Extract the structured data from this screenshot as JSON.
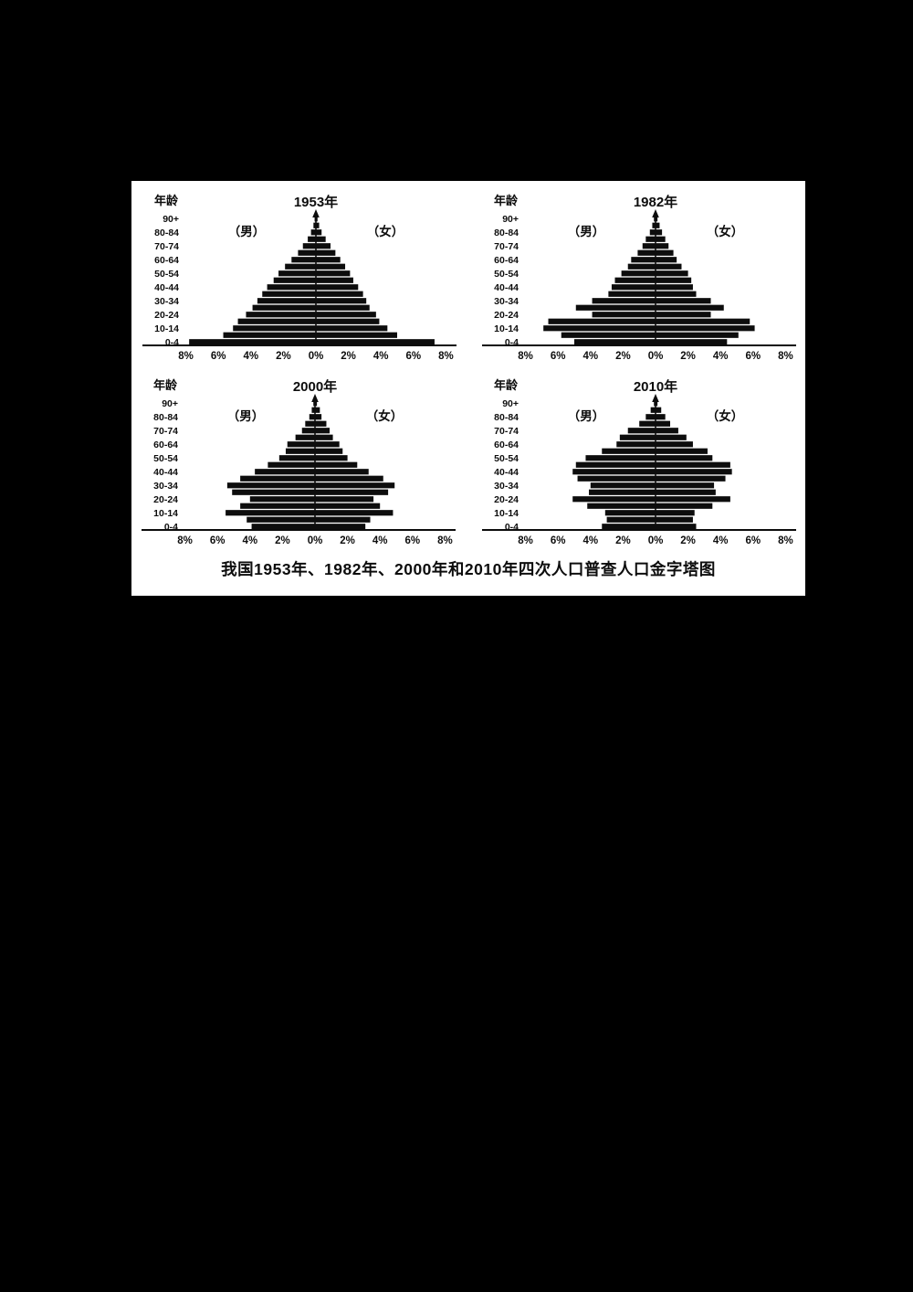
{
  "page": {
    "background": "#000000"
  },
  "panel": {
    "background": "#ffffff",
    "caption": "我国1953年、1982年、2000年和2010年四次人口普查人口金字塔图"
  },
  "pyramid_common": {
    "age_axis_label": "年龄",
    "male_label": "（男）",
    "female_label": "（女）",
    "bar_color": "#0d0d0d",
    "axis_color": "#0d0d0d",
    "age_groups": [
      "0-4",
      "5-9",
      "10-14",
      "15-19",
      "20-24",
      "25-29",
      "30-34",
      "35-39",
      "40-44",
      "45-49",
      "50-54",
      "55-59",
      "60-64",
      "65-69",
      "70-74",
      "75-79",
      "80-84",
      "85-89",
      "90+"
    ],
    "age_labels_shown": [
      "0-4",
      "10-14",
      "20-24",
      "30-34",
      "40-44",
      "50-54",
      "60-64",
      "70-74",
      "80-84",
      "90+"
    ],
    "x_tick_labels": [
      "8%",
      "6%",
      "4%",
      "2%",
      "0%",
      "2%",
      "4%",
      "6%",
      "8%"
    ],
    "x_tick_percent": [
      -8,
      -6,
      -4,
      -2,
      0,
      2,
      4,
      6,
      8
    ],
    "xlim_percent_abs": [
      0,
      8
    ],
    "units": "percent of total population per 5-year age group, males left / females right"
  },
  "chart_data": [
    {
      "type": "bar",
      "subtype": "population_pyramid",
      "title": "1953年",
      "series": [
        {
          "name": "男",
          "side": "left",
          "values": [
            7.8,
            5.7,
            5.1,
            4.8,
            4.3,
            3.9,
            3.6,
            3.3,
            3.0,
            2.6,
            2.3,
            1.9,
            1.5,
            1.1,
            0.8,
            0.5,
            0.3,
            0.15,
            0.08
          ]
        },
        {
          "name": "女",
          "side": "right",
          "values": [
            7.3,
            5.0,
            4.4,
            3.9,
            3.7,
            3.3,
            3.1,
            2.9,
            2.6,
            2.3,
            2.1,
            1.8,
            1.5,
            1.2,
            0.9,
            0.6,
            0.35,
            0.2,
            0.1
          ]
        }
      ]
    },
    {
      "type": "bar",
      "subtype": "population_pyramid",
      "title": "1982年",
      "series": [
        {
          "name": "男",
          "side": "left",
          "values": [
            5.0,
            5.8,
            6.9,
            6.6,
            3.9,
            4.9,
            3.9,
            2.9,
            2.7,
            2.5,
            2.1,
            1.7,
            1.5,
            1.1,
            0.8,
            0.6,
            0.35,
            0.2,
            0.1
          ]
        },
        {
          "name": "女",
          "side": "right",
          "values": [
            4.4,
            5.1,
            6.1,
            5.8,
            3.4,
            4.2,
            3.4,
            2.5,
            2.3,
            2.2,
            2.0,
            1.6,
            1.3,
            1.1,
            0.8,
            0.6,
            0.4,
            0.25,
            0.12
          ]
        }
      ]
    },
    {
      "type": "bar",
      "subtype": "population_pyramid",
      "title": "2000年",
      "series": [
        {
          "name": "男",
          "side": "left",
          "values": [
            3.9,
            4.2,
            5.5,
            4.6,
            4.0,
            5.1,
            5.4,
            4.6,
            3.7,
            2.9,
            2.2,
            1.8,
            1.7,
            1.2,
            0.8,
            0.6,
            0.35,
            0.2,
            0.1
          ]
        },
        {
          "name": "女",
          "side": "right",
          "values": [
            3.1,
            3.4,
            4.8,
            4.0,
            3.6,
            4.5,
            4.9,
            4.2,
            3.3,
            2.6,
            2.0,
            1.7,
            1.5,
            1.1,
            0.9,
            0.7,
            0.4,
            0.3,
            0.12
          ]
        }
      ]
    },
    {
      "type": "bar",
      "subtype": "population_pyramid",
      "title": "2010年",
      "series": [
        {
          "name": "男",
          "side": "left",
          "values": [
            3.3,
            3.0,
            3.1,
            4.2,
            5.1,
            4.1,
            4.0,
            4.8,
            5.1,
            4.9,
            4.3,
            3.3,
            2.4,
            2.2,
            1.7,
            1.0,
            0.6,
            0.3,
            0.1
          ]
        },
        {
          "name": "女",
          "side": "right",
          "values": [
            2.5,
            2.3,
            2.4,
            3.5,
            4.6,
            3.7,
            3.6,
            4.3,
            4.7,
            4.6,
            3.5,
            3.2,
            2.3,
            1.9,
            1.4,
            0.9,
            0.6,
            0.35,
            0.12
          ]
        }
      ]
    }
  ]
}
